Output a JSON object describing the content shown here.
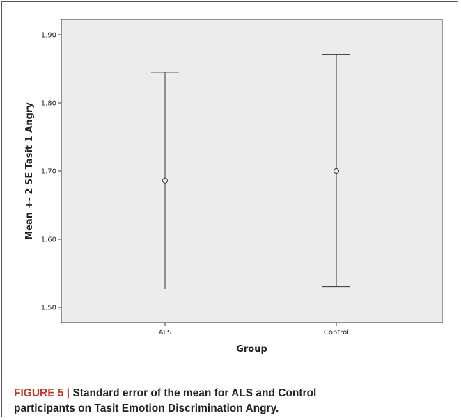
{
  "chart_data": {
    "type": "errorbar",
    "xlabel": "Group",
    "ylabel": "Mean +- 2 SE Tasit 1 Angry",
    "categories": [
      "ALS",
      "Control"
    ],
    "series": [
      {
        "points": [
          {
            "category": "ALS",
            "mean": 1.686,
            "lower": 1.527,
            "upper": 1.845
          },
          {
            "category": "Control",
            "mean": 1.7,
            "lower": 1.53,
            "upper": 1.871
          }
        ]
      }
    ],
    "ylim": [
      1.48,
      1.93
    ],
    "yticks": [
      "1.50",
      "1.60",
      "1.70",
      "1.80",
      "1.90"
    ],
    "ytick_values": [
      1.5,
      1.6,
      1.7,
      1.8,
      1.9
    ],
    "grid": false,
    "plot_background": "#ececec"
  },
  "caption": {
    "label": "FIGURE 5 | ",
    "line1": "Standard error of the mean for ALS and Control",
    "line2": "participants on Tasit Emotion Discrimination Angry."
  }
}
